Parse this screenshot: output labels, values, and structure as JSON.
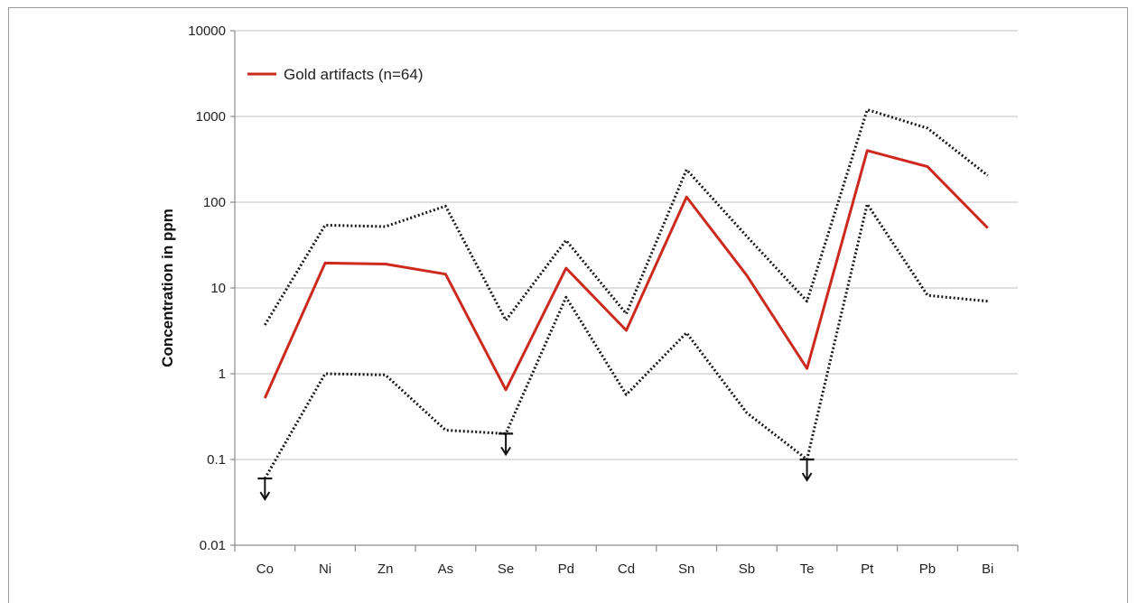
{
  "chart_data": {
    "type": "line",
    "title": "",
    "xlabel": "",
    "ylabel": "Concentration in ppm",
    "y_scale": "log",
    "ylim": [
      0.01,
      10000
    ],
    "y_ticks": [
      "10000",
      "1000",
      "100",
      "10",
      "1",
      "0.1",
      "0.01"
    ],
    "grid": "horizontal",
    "legend": {
      "position": "top-left",
      "label": "Gold artifacts (n=64)"
    },
    "categories": [
      "Co",
      "Ni",
      "Zn",
      "As",
      "Se",
      "Pd",
      "Cd",
      "Sn",
      "Sb",
      "Te",
      "Pt",
      "Pb",
      "Bi"
    ],
    "series": [
      {
        "name": "Gold artifacts (n=64)",
        "style": "solid",
        "color": "#cc2a1e",
        "values": [
          0.52,
          19.5,
          19,
          14.5,
          0.65,
          17,
          3.2,
          115,
          14,
          1.15,
          400,
          260,
          50
        ]
      },
      {
        "style": "dotted",
        "color": "#1a1a1a",
        "values": [
          3.7,
          54,
          52,
          90,
          4.2,
          36,
          5,
          240,
          40,
          7,
          1200,
          730,
          205
        ]
      },
      {
        "style": "dotted",
        "color": "#1a1a1a",
        "values": [
          0.06,
          1.0,
          0.97,
          0.22,
          0.2,
          7.8,
          0.57,
          3.0,
          0.35,
          0.1,
          95,
          8.2,
          7.0
        ]
      }
    ],
    "detection_limit_markers": [
      "Co",
      "Se",
      "Te"
    ]
  }
}
